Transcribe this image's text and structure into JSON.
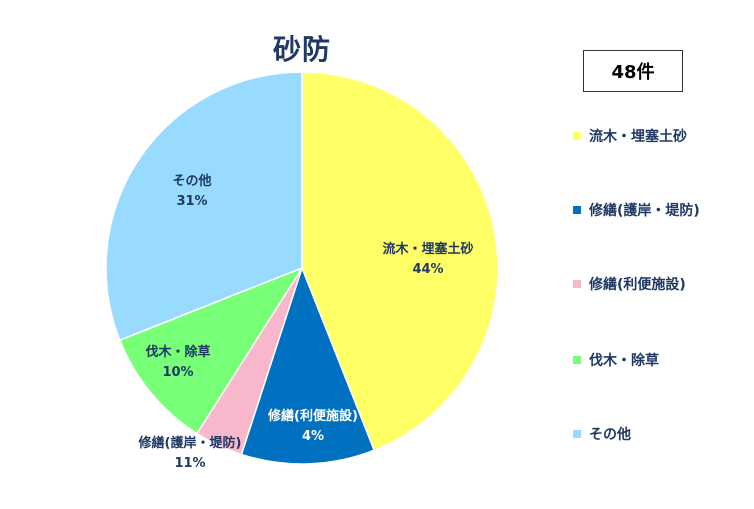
{
  "count_label": "48件",
  "chart_data": {
    "type": "pie",
    "title": "砂防",
    "slices": [
      {
        "label": "流木・埋塞土砂",
        "value": 44,
        "percent_label": "44%",
        "color": "#ffff66",
        "label_color": "#1f3864"
      },
      {
        "label": "修繕(護岸・堤防)",
        "value": 11,
        "percent_label": "11%",
        "color": "#0070c0",
        "label_color": "#1f3864"
      },
      {
        "label": "修繕(利便施設)",
        "value": 4,
        "percent_label": "4%",
        "color": "#f8b8cc",
        "label_color": "#ffffff"
      },
      {
        "label": "伐木・除草",
        "value": 10,
        "percent_label": "10%",
        "color": "#77ff77",
        "label_color": "#1f3864"
      },
      {
        "label": "その他",
        "value": 31,
        "percent_label": "31%",
        "color": "#99dbff",
        "label_color": "#1f3864"
      }
    ],
    "legend_position": "right"
  }
}
